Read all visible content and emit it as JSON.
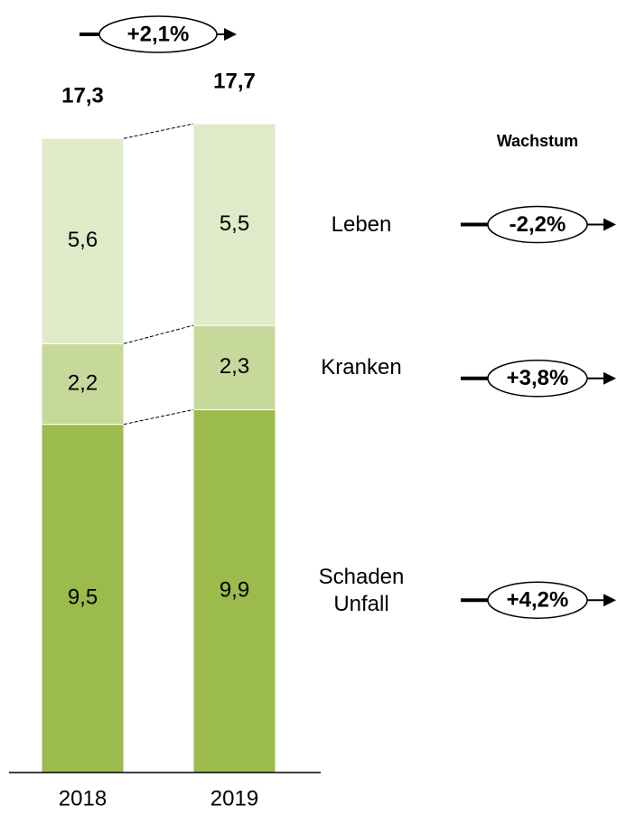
{
  "chart_data": {
    "type": "stacked_bar",
    "categories": [
      "2018",
      "2019"
    ],
    "series": [
      {
        "name": "Schaden\nUnfall",
        "color": "#9bbb4c",
        "values": [
          9.5,
          9.9
        ],
        "value_labels": [
          "9,5",
          "9,9"
        ],
        "growth": 4.2,
        "growth_label": "+4,2%"
      },
      {
        "name": "Kranken",
        "color": "#c6d99b",
        "values": [
          2.2,
          2.3
        ],
        "value_labels": [
          "2,2",
          "2,3"
        ],
        "growth": 3.8,
        "growth_label": "+3,8%"
      },
      {
        "name": "Leben",
        "color": "#e0eac8",
        "values": [
          5.6,
          5.5
        ],
        "value_labels": [
          "5,6",
          "5,5"
        ],
        "growth": -2.2,
        "growth_label": "-2,2%"
      }
    ],
    "totals": [
      17.3,
      17.7
    ],
    "total_labels": [
      "17,3",
      "17,7"
    ],
    "total_growth": 2.1,
    "total_growth_label": "+2,1%",
    "growth_title": "Wachstum"
  }
}
